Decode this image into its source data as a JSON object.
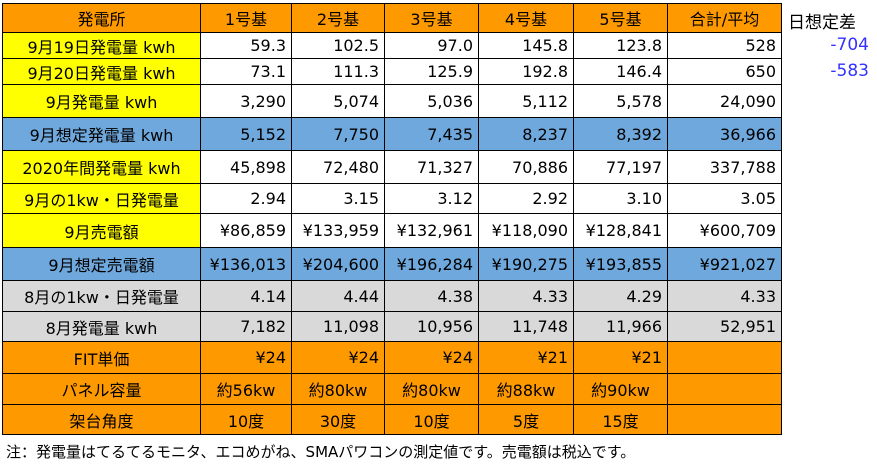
{
  "table": {
    "header": [
      "発電所",
      "1号基",
      "2号基",
      "3号基",
      "4号基",
      "5号基",
      "合計/平均"
    ],
    "rows": [
      [
        "9月19日発電量 kwh",
        "59.3",
        "102.5",
        "97.0",
        "145.8",
        "123.8",
        "528"
      ],
      [
        "9月20日発電量 kwh",
        "73.1",
        "111.3",
        "125.9",
        "192.8",
        "146.4",
        "650"
      ],
      [
        "9月発電量 kwh",
        "3,290",
        "5,074",
        "5,036",
        "5,112",
        "5,578",
        "24,090"
      ],
      [
        "9月想定発電量 kwh",
        "5,152",
        "7,750",
        "7,435",
        "8,237",
        "8,392",
        "36,966"
      ],
      [
        "2020年間発電量 kwh",
        "45,898",
        "72,480",
        "71,327",
        "70,886",
        "77,197",
        "337,788"
      ],
      [
        "9月の1kw・日発電量",
        "2.94",
        "3.15",
        "3.12",
        "2.92",
        "3.10",
        "3.05"
      ],
      [
        "9月売電額",
        "¥86,859",
        "¥133,959",
        "¥132,961",
        "¥118,090",
        "¥128,841",
        "¥600,709"
      ],
      [
        "9月想定売電額",
        "¥136,013",
        "¥204,600",
        "¥196,284",
        "¥190,275",
        "¥193,855",
        "¥921,027"
      ],
      [
        "8月の1kw・日発電量",
        "4.14",
        "4.44",
        "4.38",
        "4.33",
        "4.29",
        "4.33"
      ],
      [
        "8月発電量 kwh",
        "7,182",
        "11,098",
        "10,956",
        "11,748",
        "11,966",
        "52,951"
      ],
      [
        "FIT単価",
        "¥24",
        "¥24",
        "¥24",
        "¥21",
        "¥21",
        null
      ],
      [
        "パネル容量",
        "約56kw",
        "約80kw",
        "約80kw",
        "約88kw",
        "約90kw",
        null
      ],
      [
        "架台角度",
        "10度",
        "30度",
        "10度",
        "5度",
        "15度",
        null
      ]
    ]
  },
  "side": {
    "title": "日想定差",
    "values": [
      "-704",
      "-583"
    ]
  },
  "note": "注：発電量はてるてるモニタ、エコめがね、SMAパワコンの測定値です。売電額は税込です。"
}
